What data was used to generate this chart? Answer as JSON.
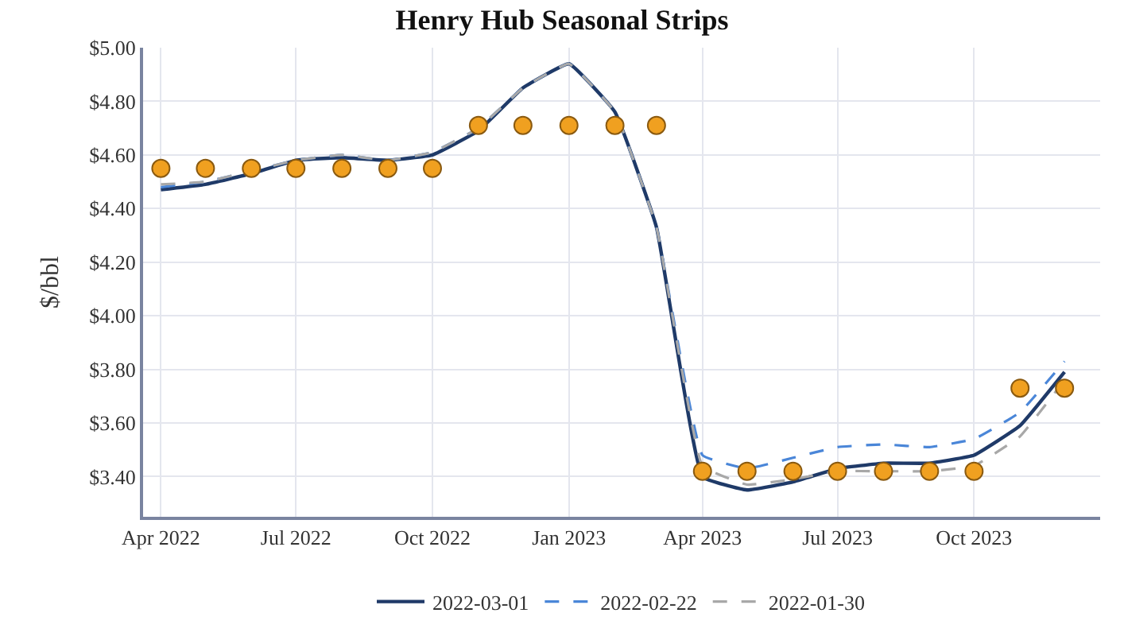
{
  "chart_data": {
    "type": "line",
    "title": "Henry Hub Seasonal Strips",
    "ylabel": "$/bbl",
    "x": [
      "2022-04",
      "2022-05",
      "2022-06",
      "2022-07",
      "2022-08",
      "2022-09",
      "2022-10",
      "2022-11",
      "2022-12",
      "2023-01",
      "2023-02",
      "2023-03",
      "2023-04",
      "2023-05",
      "2023-06",
      "2023-07",
      "2023-08",
      "2023-09",
      "2023-10",
      "2023-11",
      "2023-12"
    ],
    "series": [
      {
        "name": "2022-03-01",
        "color": "#1f3a68",
        "line_style": "solid",
        "marker": "none",
        "values": [
          4.47,
          4.49,
          4.53,
          4.58,
          4.59,
          4.58,
          4.6,
          4.69,
          4.85,
          4.94,
          4.76,
          4.33,
          3.4,
          3.35,
          3.38,
          3.43,
          3.45,
          3.45,
          3.48,
          3.59,
          3.79
        ]
      },
      {
        "name": "2022-02-22",
        "color": "#4a86d8",
        "line_style": "dashed",
        "marker": "none",
        "values": [
          4.48,
          4.5,
          4.54,
          4.58,
          4.6,
          4.58,
          4.61,
          4.7,
          4.85,
          4.94,
          4.76,
          4.33,
          3.48,
          3.43,
          3.47,
          3.51,
          3.52,
          3.51,
          3.54,
          3.64,
          3.83
        ]
      },
      {
        "name": "2022-01-30",
        "color": "#a8a8a8",
        "line_style": "dashed",
        "marker": "none",
        "values": [
          4.49,
          4.5,
          4.54,
          4.58,
          4.6,
          4.58,
          4.61,
          4.7,
          4.85,
          4.94,
          4.76,
          4.33,
          3.44,
          3.37,
          3.39,
          3.42,
          3.42,
          3.42,
          3.44,
          3.55,
          3.76
        ]
      },
      {
        "type": "scatter",
        "color": "#f0a020",
        "marker": "circle",
        "values": [
          4.55,
          4.55,
          4.55,
          4.55,
          4.55,
          4.55,
          4.55,
          4.71,
          4.71,
          4.71,
          4.71,
          4.71,
          3.42,
          3.42,
          3.42,
          3.42,
          3.42,
          3.42,
          3.42,
          3.73,
          3.73
        ]
      }
    ],
    "xlim": [
      "2022-03-20",
      "2023-12-25"
    ],
    "xticks": [
      {
        "value": "2022-04-01",
        "label": "Apr 2022"
      },
      {
        "value": "2022-07-01",
        "label": "Jul 2022"
      },
      {
        "value": "2022-10-01",
        "label": "Oct 2022"
      },
      {
        "value": "2023-01-01",
        "label": "Jan 2023"
      },
      {
        "value": "2023-04-01",
        "label": "Apr 2023"
      },
      {
        "value": "2023-07-01",
        "label": "Jul 2023"
      },
      {
        "value": "2023-10-01",
        "label": "Oct 2023"
      }
    ],
    "ylim": [
      3.25,
      5.0
    ],
    "yticks": [
      {
        "value": 3.4,
        "label": "$3.40"
      },
      {
        "value": 3.6,
        "label": "$3.60"
      },
      {
        "value": 3.8,
        "label": "$3.80"
      },
      {
        "value": 4.0,
        "label": "$4.00"
      },
      {
        "value": 4.2,
        "label": "$4.20"
      },
      {
        "value": 4.4,
        "label": "$4.40"
      },
      {
        "value": 4.6,
        "label": "$4.60"
      },
      {
        "value": 4.8,
        "label": "$4.80"
      },
      {
        "value": 5.0,
        "label": "$5.00"
      }
    ],
    "grid": true,
    "legend": "bottom"
  }
}
